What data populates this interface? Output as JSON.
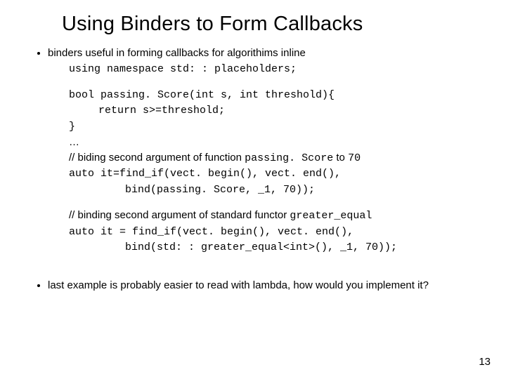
{
  "title": "Using Binders to Form Callbacks",
  "bullet1_intro": "binders useful in forming callbacks for algorithims inline",
  "code_using": "using namespace std: : placeholders;",
  "code_fn_decl": "bool passing. Score(int s, int threshold){",
  "code_fn_body": "return s>=threshold;",
  "code_fn_close": "}",
  "ellipsis": "…",
  "comment_bind1": "// biding second argument of function ",
  "comment_bind1_code": "passing. Score",
  "comment_bind1_tail": " to ",
  "comment_bind1_val": "70",
  "code_findif1": "auto it=find_if(vect. begin(), vect. end(),",
  "code_bind1": "bind(passing. Score, _1, 70));",
  "comment_bind2": "// binding second argument of standard functor ",
  "comment_bind2_code": "greater_equal",
  "code_findif2": "auto it = find_if(vect. begin(), vect. end(),",
  "code_bind2": "bind(std: : greater_equal<int>(), _1, 70));",
  "bullet2": "last example is probably easier to read with lambda, how would you implement it?",
  "pagenum": "13"
}
